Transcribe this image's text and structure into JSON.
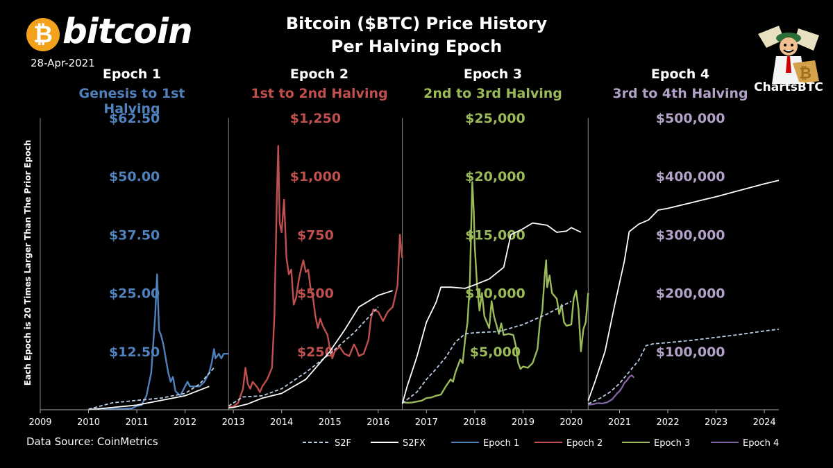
{
  "header": {
    "logo_text": "bitcoin",
    "logo_symbol": "₿",
    "date": "28-Apr-2021",
    "title_line1": "Bitcoin ($BTC) Price History",
    "title_line2": "Per Halving Epoch",
    "brand": "ChartsBTC",
    "y_axis_label": "Each Epoch is 20 Times Larger Than The Prior Epoch",
    "source": "Data Source: CoinMetrics"
  },
  "colors": {
    "epoch1": "#4f81bd",
    "epoch2": "#c0504d",
    "epoch3": "#9bbb59",
    "epoch4": "#8064a2",
    "epoch4_label": "#b3a2c7",
    "s2f": "#b9cde5",
    "s2fx": "#ffffff",
    "coin": "#f2a21b"
  },
  "chart_data": {
    "type": "line",
    "x_axis": {
      "ticks": [
        "2009",
        "2010",
        "2011",
        "2012",
        "2013",
        "2014",
        "2015",
        "2016",
        "2017",
        "2018",
        "2019",
        "2020",
        "2021",
        "2022",
        "2023",
        "2024"
      ],
      "xlim": [
        2009.0,
        2024.3
      ]
    },
    "epochs": [
      {
        "name": "Epoch 1",
        "range_label": "Genesis to 1st Halving",
        "start": 2009.0,
        "end": 2012.9,
        "ticks": [
          "$12.50",
          "$25.00",
          "$37.50",
          "$50.00",
          "$62.50"
        ],
        "ylim": [
          0,
          62.5
        ]
      },
      {
        "name": "Epoch 2",
        "range_label": "1st  to 2nd Halving",
        "start": 2012.9,
        "end": 2016.5,
        "ticks": [
          "$250",
          "$500",
          "$750",
          "$1,000",
          "$1,250"
        ],
        "ylim": [
          0,
          1250
        ]
      },
      {
        "name": "Epoch 3",
        "range_label": "2nd to 3rd Halving",
        "start": 2016.5,
        "end": 2020.35,
        "ticks": [
          "$5,000",
          "$10,000",
          "$15,000",
          "$20,000",
          "$25,000"
        ],
        "ylim": [
          0,
          25000
        ]
      },
      {
        "name": "Epoch 4",
        "range_label": "3rd to 4th Halving",
        "start": 2020.35,
        "end": 2024.3,
        "ticks": [
          "$100,000",
          "$200,000",
          "$300,000",
          "$400,000",
          "$500,000"
        ],
        "ylim": [
          0,
          500000
        ]
      }
    ],
    "legend": [
      "S2F",
      "S2FX",
      "Epoch 1",
      "Epoch 2",
      "Epoch 3",
      "Epoch 4"
    ],
    "series": [
      {
        "name": "Epoch 1",
        "epoch": 0,
        "points": [
          [
            2010.0,
            0.1
          ],
          [
            2010.4,
            0.1
          ],
          [
            2010.7,
            0.2
          ],
          [
            2010.9,
            0.3
          ],
          [
            2011.0,
            0.8
          ],
          [
            2011.1,
            1.0
          ],
          [
            2011.2,
            3.0
          ],
          [
            2011.3,
            8
          ],
          [
            2011.38,
            20
          ],
          [
            2011.42,
            29
          ],
          [
            2011.46,
            17
          ],
          [
            2011.5,
            16
          ],
          [
            2011.55,
            14
          ],
          [
            2011.6,
            11
          ],
          [
            2011.65,
            8
          ],
          [
            2011.7,
            6
          ],
          [
            2011.75,
            7
          ],
          [
            2011.8,
            4
          ],
          [
            2011.9,
            3
          ],
          [
            2012.0,
            5
          ],
          [
            2012.05,
            6
          ],
          [
            2012.1,
            5
          ],
          [
            2012.15,
            5
          ],
          [
            2012.2,
            5
          ],
          [
            2012.3,
            5
          ],
          [
            2012.4,
            6
          ],
          [
            2012.5,
            8
          ],
          [
            2012.55,
            10
          ],
          [
            2012.6,
            13
          ],
          [
            2012.63,
            11
          ],
          [
            2012.7,
            12
          ],
          [
            2012.75,
            11
          ],
          [
            2012.8,
            12
          ],
          [
            2012.9,
            12
          ]
        ]
      },
      {
        "name": "Epoch 2",
        "epoch": 1,
        "points": [
          [
            2012.9,
            12
          ],
          [
            2012.95,
            13
          ],
          [
            2013.0,
            14
          ],
          [
            2013.1,
            30
          ],
          [
            2013.2,
            90
          ],
          [
            2013.25,
            180
          ],
          [
            2013.3,
            110
          ],
          [
            2013.35,
            90
          ],
          [
            2013.4,
            120
          ],
          [
            2013.5,
            95
          ],
          [
            2013.55,
            75
          ],
          [
            2013.6,
            100
          ],
          [
            2013.7,
            130
          ],
          [
            2013.8,
            180
          ],
          [
            2013.85,
            400
          ],
          [
            2013.9,
            900
          ],
          [
            2013.93,
            1130
          ],
          [
            2013.96,
            800
          ],
          [
            2014.0,
            760
          ],
          [
            2014.05,
            900
          ],
          [
            2014.1,
            650
          ],
          [
            2014.15,
            580
          ],
          [
            2014.2,
            600
          ],
          [
            2014.25,
            450
          ],
          [
            2014.3,
            480
          ],
          [
            2014.35,
            550
          ],
          [
            2014.4,
            600
          ],
          [
            2014.45,
            640
          ],
          [
            2014.5,
            590
          ],
          [
            2014.55,
            600
          ],
          [
            2014.6,
            520
          ],
          [
            2014.65,
            480
          ],
          [
            2014.7,
            400
          ],
          [
            2014.75,
            350
          ],
          [
            2014.8,
            390
          ],
          [
            2014.85,
            360
          ],
          [
            2014.9,
            340
          ],
          [
            2014.95,
            320
          ],
          [
            2015.0,
            260
          ],
          [
            2015.05,
            220
          ],
          [
            2015.1,
            250
          ],
          [
            2015.2,
            270
          ],
          [
            2015.3,
            240
          ],
          [
            2015.4,
            230
          ],
          [
            2015.5,
            280
          ],
          [
            2015.55,
            260
          ],
          [
            2015.6,
            230
          ],
          [
            2015.7,
            240
          ],
          [
            2015.8,
            300
          ],
          [
            2015.85,
            390
          ],
          [
            2015.9,
            430
          ],
          [
            2016.0,
            420
          ],
          [
            2016.1,
            380
          ],
          [
            2016.2,
            420
          ],
          [
            2016.3,
            440
          ],
          [
            2016.4,
            530
          ],
          [
            2016.45,
            750
          ],
          [
            2016.48,
            680
          ],
          [
            2016.5,
            650
          ]
        ]
      },
      {
        "name": "Epoch 3",
        "epoch": 2,
        "points": [
          [
            2016.5,
            650
          ],
          [
            2016.6,
            600
          ],
          [
            2016.7,
            620
          ],
          [
            2016.8,
            700
          ],
          [
            2016.9,
            780
          ],
          [
            2017.0,
            1000
          ],
          [
            2017.1,
            1050
          ],
          [
            2017.2,
            1200
          ],
          [
            2017.3,
            1300
          ],
          [
            2017.4,
            2000
          ],
          [
            2017.5,
            2600
          ],
          [
            2017.55,
            2400
          ],
          [
            2017.6,
            3200
          ],
          [
            2017.7,
            4300
          ],
          [
            2017.75,
            4000
          ],
          [
            2017.8,
            6000
          ],
          [
            2017.85,
            7500
          ],
          [
            2017.9,
            11000
          ],
          [
            2017.95,
            19500
          ],
          [
            2017.98,
            17000
          ],
          [
            2018.0,
            14000
          ],
          [
            2018.05,
            10500
          ],
          [
            2018.1,
            8500
          ],
          [
            2018.15,
            10000
          ],
          [
            2018.2,
            8000
          ],
          [
            2018.3,
            7000
          ],
          [
            2018.35,
            9300
          ],
          [
            2018.4,
            8000
          ],
          [
            2018.5,
            6500
          ],
          [
            2018.55,
            7400
          ],
          [
            2018.6,
            6400
          ],
          [
            2018.7,
            6500
          ],
          [
            2018.8,
            6400
          ],
          [
            2018.85,
            5500
          ],
          [
            2018.9,
            4000
          ],
          [
            2018.95,
            3500
          ],
          [
            2019.0,
            3700
          ],
          [
            2019.1,
            3600
          ],
          [
            2019.2,
            4000
          ],
          [
            2019.3,
            5200
          ],
          [
            2019.35,
            7500
          ],
          [
            2019.4,
            8500
          ],
          [
            2019.45,
            11500
          ],
          [
            2019.48,
            12800
          ],
          [
            2019.5,
            10500
          ],
          [
            2019.55,
            11500
          ],
          [
            2019.6,
            10000
          ],
          [
            2019.7,
            9500
          ],
          [
            2019.75,
            8200
          ],
          [
            2019.8,
            9000
          ],
          [
            2019.85,
            7500
          ],
          [
            2019.9,
            7200
          ],
          [
            2020.0,
            7300
          ],
          [
            2020.05,
            9500
          ],
          [
            2020.1,
            10200
          ],
          [
            2020.15,
            8600
          ],
          [
            2020.2,
            5000
          ],
          [
            2020.25,
            6900
          ],
          [
            2020.3,
            7500
          ],
          [
            2020.35,
            10000
          ]
        ]
      },
      {
        "name": "Epoch 4",
        "epoch": 3,
        "points": [
          [
            2020.35,
            8600
          ],
          [
            2020.45,
            9500
          ],
          [
            2020.55,
            11300
          ],
          [
            2020.65,
            10800
          ],
          [
            2020.75,
            13000
          ],
          [
            2020.85,
            18000
          ],
          [
            2020.95,
            28000
          ],
          [
            2021.0,
            32000
          ],
          [
            2021.05,
            38000
          ],
          [
            2021.1,
            46000
          ],
          [
            2021.15,
            50000
          ],
          [
            2021.2,
            56000
          ],
          [
            2021.25,
            59000
          ],
          [
            2021.3,
            55000
          ]
        ]
      },
      {
        "name": "S2F",
        "points": [
          [
            2010.0,
            0.1
          ],
          [
            2010.5,
            1.5
          ],
          [
            2011.0,
            2
          ],
          [
            2011.5,
            2.5
          ],
          [
            2012.0,
            3.5
          ],
          [
            2012.3,
            5.5
          ],
          [
            2012.6,
            9
          ],
          [
            2012.9,
            16
          ],
          [
            2013.2,
            55
          ],
          [
            2013.6,
            60
          ],
          [
            2014.0,
            90
          ],
          [
            2014.5,
            160
          ],
          [
            2015.0,
            240
          ],
          [
            2015.5,
            330
          ],
          [
            2016.0,
            440
          ],
          [
            2016.5,
            560
          ],
          [
            2016.8,
            1500
          ],
          [
            2017.0,
            2600
          ],
          [
            2017.2,
            3500
          ],
          [
            2017.4,
            4500
          ],
          [
            2017.6,
            5800
          ],
          [
            2017.8,
            6500
          ],
          [
            2018.0,
            6600
          ],
          [
            2018.5,
            6700
          ],
          [
            2019.0,
            7300
          ],
          [
            2019.5,
            8200
          ],
          [
            2020.0,
            9300
          ],
          [
            2020.35,
            10000
          ],
          [
            2020.6,
            20000
          ],
          [
            2020.8,
            30000
          ],
          [
            2021.0,
            45000
          ],
          [
            2021.2,
            65000
          ],
          [
            2021.4,
            85000
          ],
          [
            2021.55,
            110000
          ],
          [
            2021.7,
            113000
          ],
          [
            2022.0,
            115000
          ],
          [
            2022.5,
            119000
          ],
          [
            2023.0,
            124000
          ],
          [
            2023.5,
            129000
          ],
          [
            2024.0,
            135000
          ],
          [
            2024.3,
            138000
          ]
        ]
      },
      {
        "name": "S2FX",
        "points": [
          [
            2010.0,
            0
          ],
          [
            2010.5,
            0.5
          ],
          [
            2011.0,
            1
          ],
          [
            2011.5,
            2
          ],
          [
            2012.0,
            3
          ],
          [
            2012.5,
            5
          ],
          [
            2012.9,
            7.5
          ],
          [
            2013.0,
            10
          ],
          [
            2013.3,
            25
          ],
          [
            2013.6,
            50
          ],
          [
            2014.0,
            70
          ],
          [
            2014.5,
            130
          ],
          [
            2015.0,
            250
          ],
          [
            2015.3,
            340
          ],
          [
            2015.6,
            440
          ],
          [
            2016.0,
            490
          ],
          [
            2016.3,
            510
          ],
          [
            2016.5,
            520
          ],
          [
            2016.6,
            2000
          ],
          [
            2016.8,
            4500
          ],
          [
            2017.0,
            7500
          ],
          [
            2017.2,
            9200
          ],
          [
            2017.3,
            10500
          ],
          [
            2017.5,
            10500
          ],
          [
            2017.8,
            10400
          ],
          [
            2018.0,
            10700
          ],
          [
            2018.3,
            11200
          ],
          [
            2018.6,
            12200
          ],
          [
            2018.75,
            15000
          ],
          [
            2019.0,
            15500
          ],
          [
            2019.2,
            16000
          ],
          [
            2019.5,
            15800
          ],
          [
            2019.7,
            15200
          ],
          [
            2019.9,
            15300
          ],
          [
            2020.0,
            15600
          ],
          [
            2020.2,
            15200
          ],
          [
            2020.35,
            15400
          ],
          [
            2020.5,
            50000
          ],
          [
            2020.7,
            100000
          ],
          [
            2020.9,
            180000
          ],
          [
            2021.1,
            255000
          ],
          [
            2021.2,
            305000
          ],
          [
            2021.4,
            318000
          ],
          [
            2021.6,
            325000
          ],
          [
            2021.8,
            342000
          ],
          [
            2022.0,
            345000
          ],
          [
            2022.5,
            355000
          ],
          [
            2023.0,
            365000
          ],
          [
            2023.5,
            376000
          ],
          [
            2024.0,
            387000
          ],
          [
            2024.3,
            393000
          ]
        ]
      }
    ]
  }
}
